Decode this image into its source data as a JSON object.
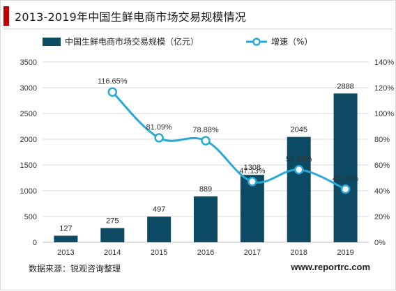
{
  "header": {
    "title": "2013-2019年中国生鲜电商市场交易规模情况"
  },
  "footer": {
    "source": "数据来源：锐观咨询整理",
    "website": "www.reportrc.com"
  },
  "colors": {
    "bar": "#0d4a63",
    "line": "#29a9d6",
    "accent": "#c00000",
    "grid": "#d9d9d9"
  },
  "chart_data": {
    "type": "bar",
    "categories": [
      "2013",
      "2014",
      "2015",
      "2016",
      "2017",
      "2018",
      "2019"
    ],
    "series": [
      {
        "name": "中国生鲜电商市场交易规模（亿元）",
        "type": "bar",
        "axis": "left",
        "values": [
          127,
          275,
          497,
          889,
          1308,
          2045,
          2888
        ],
        "labels": [
          "127",
          "275",
          "497",
          "889",
          "1308",
          "2045",
          "2888"
        ]
      },
      {
        "name": "增速（%）",
        "type": "line",
        "axis": "right",
        "values": [
          null,
          116.65,
          81.09,
          78.88,
          47.13,
          56.33,
          41.2
        ],
        "labels": [
          "",
          "116.65%",
          "81.09%",
          "78.88%",
          "47.13%",
          "56.33%",
          "41.20%"
        ]
      }
    ],
    "ylim_left": [
      0,
      3500
    ],
    "ylim_right": [
      0,
      140
    ],
    "yticks_left": [
      "0",
      "500",
      "1000",
      "1500",
      "2000",
      "2500",
      "3000",
      "3500"
    ],
    "yticks_right": [
      "0%",
      "20%",
      "40%",
      "60%",
      "80%",
      "100%",
      "120%",
      "140%"
    ],
    "legend_position": "top",
    "grid": true
  }
}
